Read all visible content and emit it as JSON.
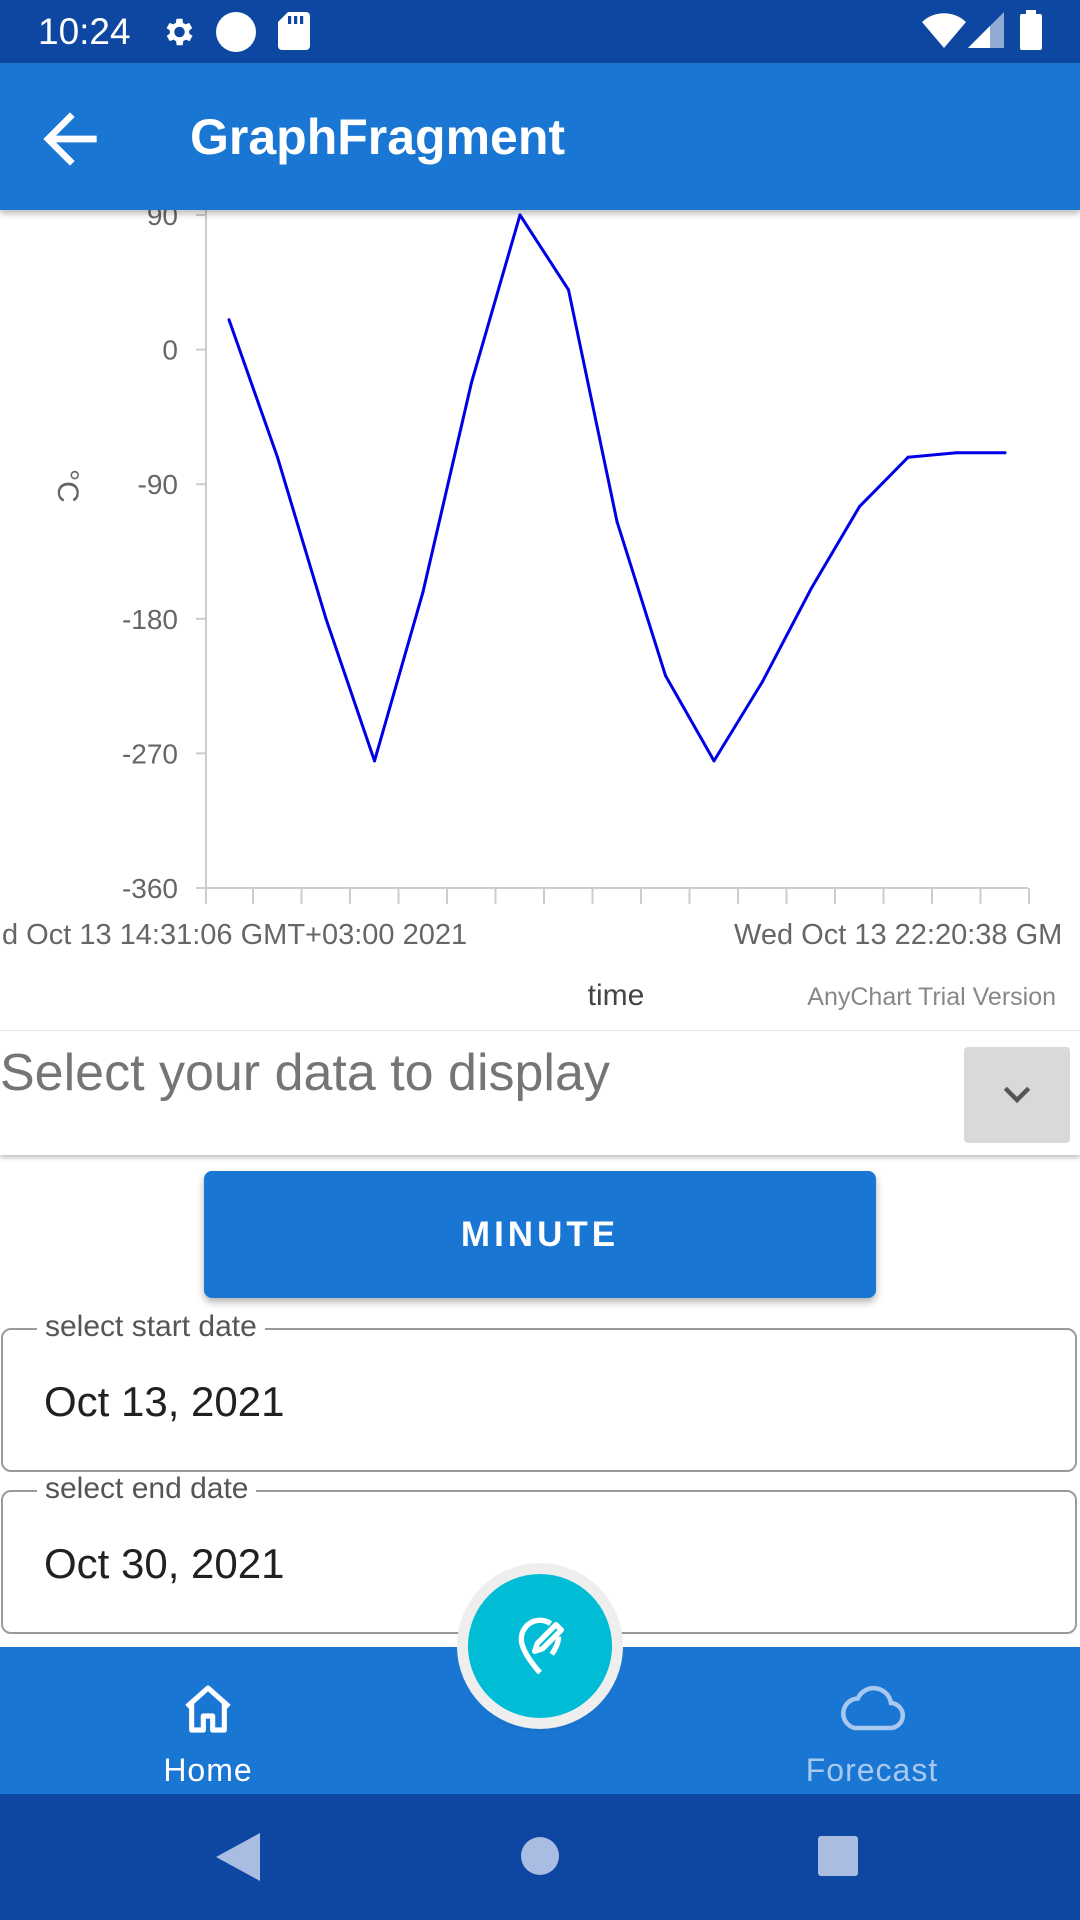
{
  "status_bar": {
    "time": "10:24",
    "icons": [
      "gear-icon",
      "circle-icon",
      "sd-card-icon",
      "wifi-icon",
      "signal-icon",
      "battery-icon"
    ]
  },
  "app_bar": {
    "title": "GraphFragment",
    "back_icon": "arrow-left-icon"
  },
  "chart_data": {
    "type": "line",
    "title": "",
    "xlabel": "time",
    "ylabel": "°C",
    "ylim": [
      -360,
      90
    ],
    "y_ticks": [
      "90",
      "0",
      "-90",
      "-180",
      "-270",
      "-360"
    ],
    "x_tick_labels": [
      "d Oct 13 14:31:06 GMT+03:00 2021",
      "Wed Oct 13 22:20:38 GM"
    ],
    "watermark": "AnyChart Trial Version",
    "grid": false,
    "series": [
      {
        "color": "#0000e6",
        "values": [
          20,
          -72,
          -180,
          -275,
          -162,
          -22,
          90,
          40,
          -115,
          -218,
          -275,
          -222,
          -160,
          -105,
          -72,
          -69,
          -69
        ]
      }
    ]
  },
  "select": {
    "placeholder": "Select your data to display",
    "icon": "chevron-down-icon"
  },
  "minute_button": {
    "label": "MINUTE"
  },
  "start_date": {
    "label": "select start date",
    "value": "Oct 13, 2021"
  },
  "end_date": {
    "label": "select end date",
    "value": "Oct 30, 2021"
  },
  "fab": {
    "icon": "edit-location-icon"
  },
  "bottom_nav": {
    "home_label": "Home",
    "forecast_label": "Forecast"
  },
  "system_nav": {
    "icons": [
      "back-triangle-icon",
      "home-circle-icon",
      "recents-square-icon"
    ]
  }
}
